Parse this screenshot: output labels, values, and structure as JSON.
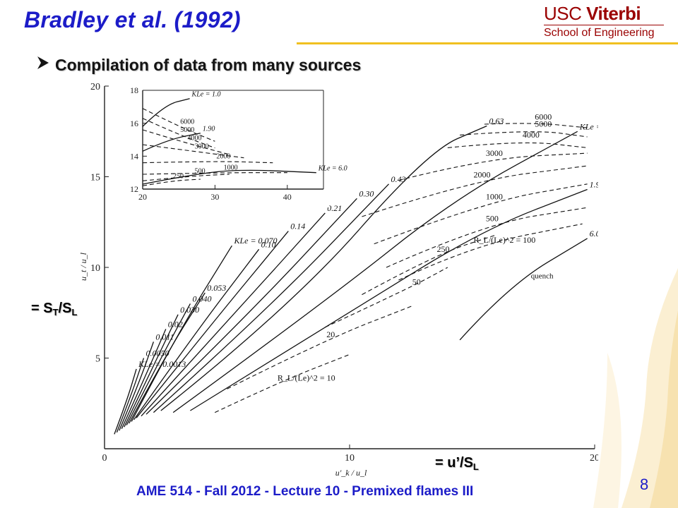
{
  "slide": {
    "title": "Bradley et al. (1992)",
    "bullet": "Compilation of data from many sources",
    "logo_top_a": "USC",
    "logo_top_b": "Viterbi",
    "logo_bottom": "School of Engineering",
    "annotation_y_prefix": "= S",
    "annotation_y_sub1": "T",
    "annotation_y_mid": "/S",
    "annotation_y_sub2": "L",
    "annotation_x_prefix": "= u’/S",
    "annotation_x_sub": "L",
    "footer": "AME 514 - Fall 2012 - Lecture 10 - Premixed flames III",
    "page_number": "8",
    "colors": {
      "title": "#1c1cc8",
      "footer": "#1c1cc8",
      "logo": "#9a0000",
      "divider": "#f0c020"
    }
  },
  "chart_data": [
    {
      "type": "line",
      "xlim": [
        0,
        20
      ],
      "ylim": [
        0,
        20
      ],
      "x_ticks": [
        "0",
        "10",
        "20"
      ],
      "y_ticks": [
        "5",
        "10",
        "15",
        "20"
      ],
      "ylabel": "u_t / u_l",
      "xlabel": "u'_k / u_l",
      "grid": false,
      "solid_series": [
        {
          "name": "KLe = 0.0013",
          "points": [
            [
              0.4,
              0.8
            ],
            [
              0.9,
              2.6
            ],
            [
              1.3,
              4.4
            ]
          ]
        },
        {
          "name": "0.0050",
          "points": [
            [
              0.5,
              0.9
            ],
            [
              1.1,
              3.0
            ],
            [
              1.6,
              5.0
            ]
          ]
        },
        {
          "name": "0.011",
          "points": [
            [
              0.6,
              1.0
            ],
            [
              1.4,
              3.6
            ],
            [
              2.0,
              5.9
            ]
          ]
        },
        {
          "name": "0.02",
          "points": [
            [
              0.7,
              1.1
            ],
            [
              1.7,
              4.1
            ],
            [
              2.5,
              6.6
            ]
          ]
        },
        {
          "name": "0.030",
          "points": [
            [
              0.8,
              1.2
            ],
            [
              2.0,
              4.6
            ],
            [
              3.0,
              7.4
            ]
          ]
        },
        {
          "name": "0.040",
          "points": [
            [
              0.9,
              1.3
            ],
            [
              2.3,
              5.0
            ],
            [
              3.5,
              8.0
            ]
          ]
        },
        {
          "name": "0.053",
          "points": [
            [
              1.0,
              1.4
            ],
            [
              2.6,
              5.4
            ],
            [
              4.1,
              8.6
            ]
          ]
        },
        {
          "name": "KLe = 0.070",
          "points": [
            [
              1.1,
              1.5
            ],
            [
              3.0,
              6.4
            ],
            [
              5.2,
              11.2
            ]
          ]
        },
        {
          "name": "0.10",
          "points": [
            [
              1.2,
              1.6
            ],
            [
              3.6,
              6.2
            ],
            [
              6.3,
              11.0
            ]
          ]
        },
        {
          "name": "0.14",
          "points": [
            [
              1.3,
              1.7
            ],
            [
              4.2,
              6.6
            ],
            [
              7.5,
              12.0
            ]
          ]
        },
        {
          "name": "0.21",
          "points": [
            [
              1.5,
              1.8
            ],
            [
              5.0,
              7.0
            ],
            [
              9.0,
              13.0
            ]
          ]
        },
        {
          "name": "0.30",
          "points": [
            [
              1.7,
              1.9
            ],
            [
              5.8,
              7.3
            ],
            [
              10.3,
              13.8
            ]
          ]
        },
        {
          "name": "0.43",
          "points": [
            [
              2.0,
              2.0
            ],
            [
              6.6,
              7.6
            ],
            [
              11.6,
              14.6
            ]
          ]
        },
        {
          "name": "0.63",
          "points": [
            [
              2.3,
              2.1
            ],
            [
              7.6,
              7.8
            ],
            [
              13.2,
              16.4
            ],
            [
              15.6,
              17.8
            ]
          ]
        },
        {
          "name": "KLe = 1.00",
          "points": [
            [
              2.8,
              2.0
            ],
            [
              9.0,
              8.1
            ],
            [
              14.3,
              13.8
            ],
            [
              19.3,
              17.5
            ]
          ]
        },
        {
          "name": "1.90",
          "points": [
            [
              3.5,
              2.1
            ],
            [
              10.3,
              7.8
            ],
            [
              15.5,
              12.1
            ],
            [
              19.7,
              14.3
            ]
          ]
        },
        {
          "name": "6.0",
          "points": [
            [
              14.5,
              6.0
            ],
            [
              16.5,
              9.0
            ],
            [
              19.7,
              11.6
            ]
          ]
        }
      ],
      "dashed_series": [
        {
          "name": "R_L/(Le)^2 = 10",
          "points": [
            [
              4.5,
              2.0
            ],
            [
              7.0,
              3.6
            ],
            [
              10.0,
              5.2
            ]
          ]
        },
        {
          "name": "20",
          "points": [
            [
              5.0,
              3.3
            ],
            [
              9.0,
              6.0
            ],
            [
              12.6,
              7.9
            ]
          ]
        },
        {
          "name": "50",
          "points": [
            [
              9.0,
              6.7
            ],
            [
              12.5,
              8.9
            ],
            [
              14.0,
              10.0
            ]
          ]
        },
        {
          "name": "250",
          "points": [
            [
              10.5,
              8.5
            ],
            [
              13.5,
              10.7
            ],
            [
              16.0,
              11.8
            ]
          ]
        },
        {
          "name": "R_L/(Le)^2 = 100",
          "points": [
            [
              12.0,
              9.3
            ],
            [
              15.0,
              11.2
            ],
            [
              19.5,
              12.4
            ]
          ]
        },
        {
          "name": "500",
          "points": [
            [
              11.5,
              10.0
            ],
            [
              15.5,
              12.4
            ],
            [
              19.7,
              13.3
            ]
          ]
        },
        {
          "name": "1000",
          "points": [
            [
              11.0,
              11.3
            ],
            [
              15.5,
              13.6
            ],
            [
              19.7,
              14.6
            ]
          ]
        },
        {
          "name": "2000",
          "points": [
            [
              10.5,
              12.8
            ],
            [
              15.0,
              14.8
            ],
            [
              19.7,
              15.6
            ]
          ]
        },
        {
          "name": "3000",
          "points": [
            [
              12.0,
              14.8
            ],
            [
              15.5,
              16.0
            ],
            [
              19.7,
              16.3
            ]
          ]
        },
        {
          "name": "4000",
          "points": [
            [
              14.0,
              16.6
            ],
            [
              17.0,
              17.0
            ],
            [
              19.7,
              16.6
            ]
          ]
        },
        {
          "name": "5000",
          "points": [
            [
              14.5,
              17.3
            ],
            [
              17.5,
              17.6
            ],
            [
              19.7,
              17.2
            ]
          ]
        },
        {
          "name": "6000",
          "points": [
            [
              15.5,
              17.9
            ],
            [
              17.5,
              18.0
            ],
            [
              19.7,
              17.7
            ]
          ]
        }
      ],
      "annotations": [
        "quench"
      ]
    },
    {
      "type": "line",
      "inset": true,
      "xlim": [
        20,
        45
      ],
      "ylim": [
        12,
        18
      ],
      "x_ticks": [
        "20",
        "30",
        "40"
      ],
      "y_ticks": [
        "12",
        "14",
        "16",
        "18"
      ],
      "grid": false,
      "solid_series": [
        {
          "name": "KLe = 1.0",
          "points": [
            [
              20.0,
              15.8
            ],
            [
              23.0,
              17.1
            ],
            [
              26.5,
              17.5
            ]
          ]
        },
        {
          "name": "1.90",
          "points": [
            [
              20.0,
              14.3
            ],
            [
              23.5,
              15.0
            ],
            [
              28.0,
              15.4
            ]
          ]
        },
        {
          "name": "KLe = 6.0",
          "points": [
            [
              20.0,
              12.3
            ],
            [
              27.0,
              12.9
            ],
            [
              33.5,
              13.2
            ],
            [
              44.0,
              13.0
            ]
          ]
        }
      ],
      "dashed_series": [
        {
          "name": "6000",
          "points": [
            [
              20.0,
              16.9
            ],
            [
              25.0,
              15.8
            ],
            [
              30.0,
              14.9
            ]
          ]
        },
        {
          "name": "5000",
          "points": [
            [
              20.0,
              16.3
            ],
            [
              25.0,
              15.3
            ],
            [
              30.0,
              14.5
            ]
          ]
        },
        {
          "name": "4000",
          "points": [
            [
              20.0,
              15.6
            ],
            [
              26.0,
              14.8
            ],
            [
              32.0,
              14.1
            ]
          ]
        },
        {
          "name": "3000",
          "points": [
            [
              20.0,
              14.7
            ],
            [
              27.0,
              14.3
            ],
            [
              34.0,
              13.9
            ]
          ]
        },
        {
          "name": "2000",
          "points": [
            [
              20.0,
              13.6
            ],
            [
              30.0,
              13.7
            ],
            [
              38.0,
              13.6
            ]
          ]
        },
        {
          "name": "1000",
          "points": [
            [
              20.0,
              12.9
            ],
            [
              31.0,
              13.0
            ],
            [
              40.0,
              13.0
            ]
          ]
        },
        {
          "name": "500",
          "points": [
            [
              20.0,
              12.5
            ],
            [
              27.0,
              12.8
            ],
            [
              32.0,
              12.9
            ]
          ]
        },
        {
          "name": "250",
          "points": [
            [
              20.0,
              12.2
            ],
            [
              24.0,
              12.5
            ],
            [
              28.0,
              12.6
            ]
          ]
        }
      ]
    }
  ]
}
